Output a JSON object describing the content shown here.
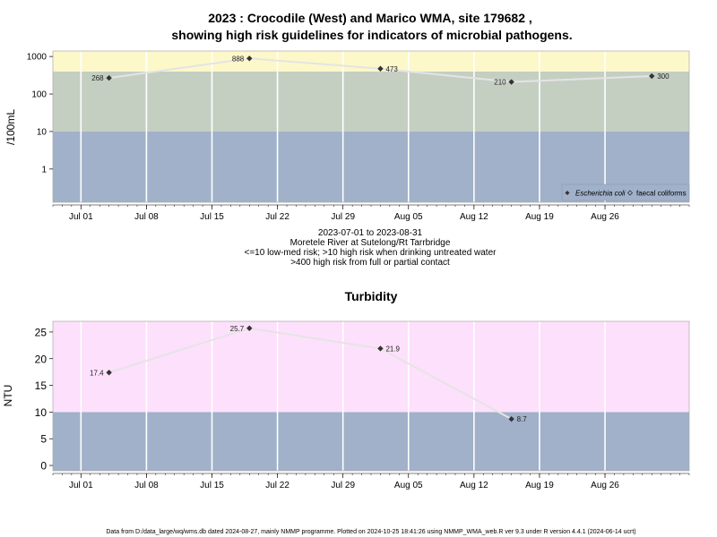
{
  "chart_data": [
    {
      "type": "line",
      "title_line1": "2023 : Crocodile (West) and Marico WMA, site 179682 ,",
      "title_line2": "showing high risk guidelines for indicators of microbial pathogens.",
      "ylabel": "/100mL",
      "yscale": "log",
      "ylim": [
        0.13,
        1400
      ],
      "yticks": [
        1,
        10,
        100,
        1000
      ],
      "ytick_labels": [
        "1",
        "10",
        "100",
        "1000"
      ],
      "xlim": [
        "2023-06-28",
        "2023-09-04"
      ],
      "xticks": [
        "2023-07-01",
        "2023-07-08",
        "2023-07-15",
        "2023-07-22",
        "2023-07-29",
        "2023-08-05",
        "2023-08-12",
        "2023-08-19",
        "2023-08-26"
      ],
      "xtick_labels": [
        "Jul 01",
        "Jul 08",
        "Jul 15",
        "Jul 22",
        "Jul 29",
        "Aug 05",
        "Aug 12",
        "Aug 19",
        "Aug 26"
      ],
      "bands": [
        {
          "from": 0.13,
          "to": 10,
          "color": "#a0b1c9"
        },
        {
          "from": 10,
          "to": 400,
          "color": "#c4cfc2"
        },
        {
          "from": 400,
          "to": 1400,
          "color": "#fdf8c9"
        }
      ],
      "series": [
        {
          "name": "Escherichia coli",
          "x": [
            "2023-07-04",
            "2023-07-19",
            "2023-08-02",
            "2023-08-16",
            "2023-08-31"
          ],
          "values": [
            268,
            888,
            473,
            210,
            300
          ],
          "labels": [
            "268",
            "888",
            "473",
            "210",
            "300"
          ],
          "label_side": [
            "left",
            "left",
            "right",
            "left",
            "right"
          ]
        }
      ],
      "legend": {
        "position": "bottom-right",
        "entries": [
          "Escherichia coli",
          "faecal coliforms"
        ]
      },
      "subtitle_lines": [
        "2023-07-01 to 2023-08-31",
        "Moretele River at Sutelong/Rt Tarrbridge",
        "<=10 low-med risk; >10 high risk when drinking untreated water",
        ">400 high risk from full or partial contact"
      ]
    },
    {
      "type": "line",
      "title": "Turbidity",
      "ylabel": "NTU",
      "ylim": [
        -1,
        27
      ],
      "yticks": [
        0,
        5,
        10,
        15,
        20,
        25
      ],
      "ytick_labels": [
        "0",
        "5",
        "10",
        "15",
        "20",
        "25"
      ],
      "xlim": [
        "2023-06-28",
        "2023-09-04"
      ],
      "xticks": [
        "2023-07-01",
        "2023-07-08",
        "2023-07-15",
        "2023-07-22",
        "2023-07-29",
        "2023-08-05",
        "2023-08-12",
        "2023-08-19",
        "2023-08-26"
      ],
      "xtick_labels": [
        "Jul 01",
        "Jul 08",
        "Jul 15",
        "Jul 22",
        "Jul 29",
        "Aug 05",
        "Aug 12",
        "Aug 19",
        "Aug 26"
      ],
      "bands": [
        {
          "from": -1,
          "to": 10,
          "color": "#a0b1c9"
        },
        {
          "from": 10,
          "to": 27,
          "color": "#fde0fb"
        }
      ],
      "series": [
        {
          "name": "Turbidity",
          "x": [
            "2023-07-04",
            "2023-07-19",
            "2023-08-02",
            "2023-08-16"
          ],
          "values": [
            17.4,
            25.7,
            21.9,
            8.7
          ],
          "labels": [
            "17.4",
            "25.7",
            "21.9",
            "8.7"
          ],
          "label_side": [
            "left",
            "left",
            "right",
            "right"
          ]
        }
      ]
    }
  ],
  "footer": "Data from D:/data_large/wq/wms.db dated 2024-08-27, mainly NMMP programme. Plotted on 2024-10-25 18:41:26 using NMMP_WMA_web.R ver 9.3 under R version 4.4.1 (2024-06-14 ucrt)",
  "colors": {
    "line": "#e4e4e4",
    "point": "#333333",
    "grid": "#ffffff"
  }
}
